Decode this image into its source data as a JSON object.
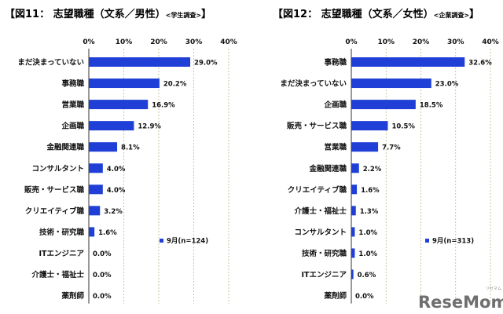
{
  "chart_data": [
    {
      "type": "bar",
      "orientation": "horizontal",
      "title": "【図11： 志望職種（文系／男性）",
      "subtitle": "<学生調査>",
      "title_end": "】",
      "xlim": [
        0,
        40
      ],
      "ticks": [
        "0%",
        "10%",
        "20%",
        "30%",
        "40%"
      ],
      "legend": "9月(n=124)",
      "bar_color": "#1f3fd6",
      "categories": [
        "まだ決まっていない",
        "事務職",
        "営業職",
        "企画職",
        "金融関連職",
        "コンサルタント",
        "販売・サービス職",
        "クリエイティブ職",
        "技術・研究職",
        "ITエンジニア",
        "介護士・福祉士",
        "薬剤師"
      ],
      "values": [
        29.0,
        20.2,
        16.9,
        12.9,
        8.1,
        4.0,
        4.0,
        3.2,
        1.6,
        0.0,
        0.0,
        0.0
      ],
      "labels": [
        "29.0%",
        "20.2%",
        "16.9%",
        "12.9%",
        "8.1%",
        "4.0%",
        "4.0%",
        "3.2%",
        "1.6%",
        "0.0%",
        "0.0%",
        "0.0%"
      ]
    },
    {
      "type": "bar",
      "orientation": "horizontal",
      "title": "【図12： 志望職種（文系／女性）",
      "subtitle": "<企業調査>",
      "title_end": "】",
      "xlim": [
        0,
        40
      ],
      "ticks": [
        "0%",
        "10%",
        "20%",
        "30%",
        "40%"
      ],
      "legend": "9月(n=313)",
      "bar_color": "#1f3fd6",
      "categories": [
        "事務職",
        "まだ決まっていない",
        "企画職",
        "販売・サービス職",
        "営業職",
        "金融関連職",
        "クリエイティブ職",
        "介護士・福祉士",
        "コンサルタント",
        "技術・研究職",
        "ITエンジニア",
        "薬剤師"
      ],
      "values": [
        32.6,
        23.0,
        18.5,
        10.5,
        7.7,
        2.2,
        1.6,
        1.3,
        1.0,
        1.0,
        0.6,
        0.0
      ],
      "labels": [
        "32.6%",
        "23.0%",
        "18.5%",
        "10.5%",
        "7.7%",
        "2.2%",
        "1.6%",
        "1.3%",
        "1.0%",
        "1.0%",
        "0.6%",
        "0.0%"
      ]
    }
  ],
  "watermark": {
    "text": "ReseMom",
    "small_text": "リセマム"
  }
}
